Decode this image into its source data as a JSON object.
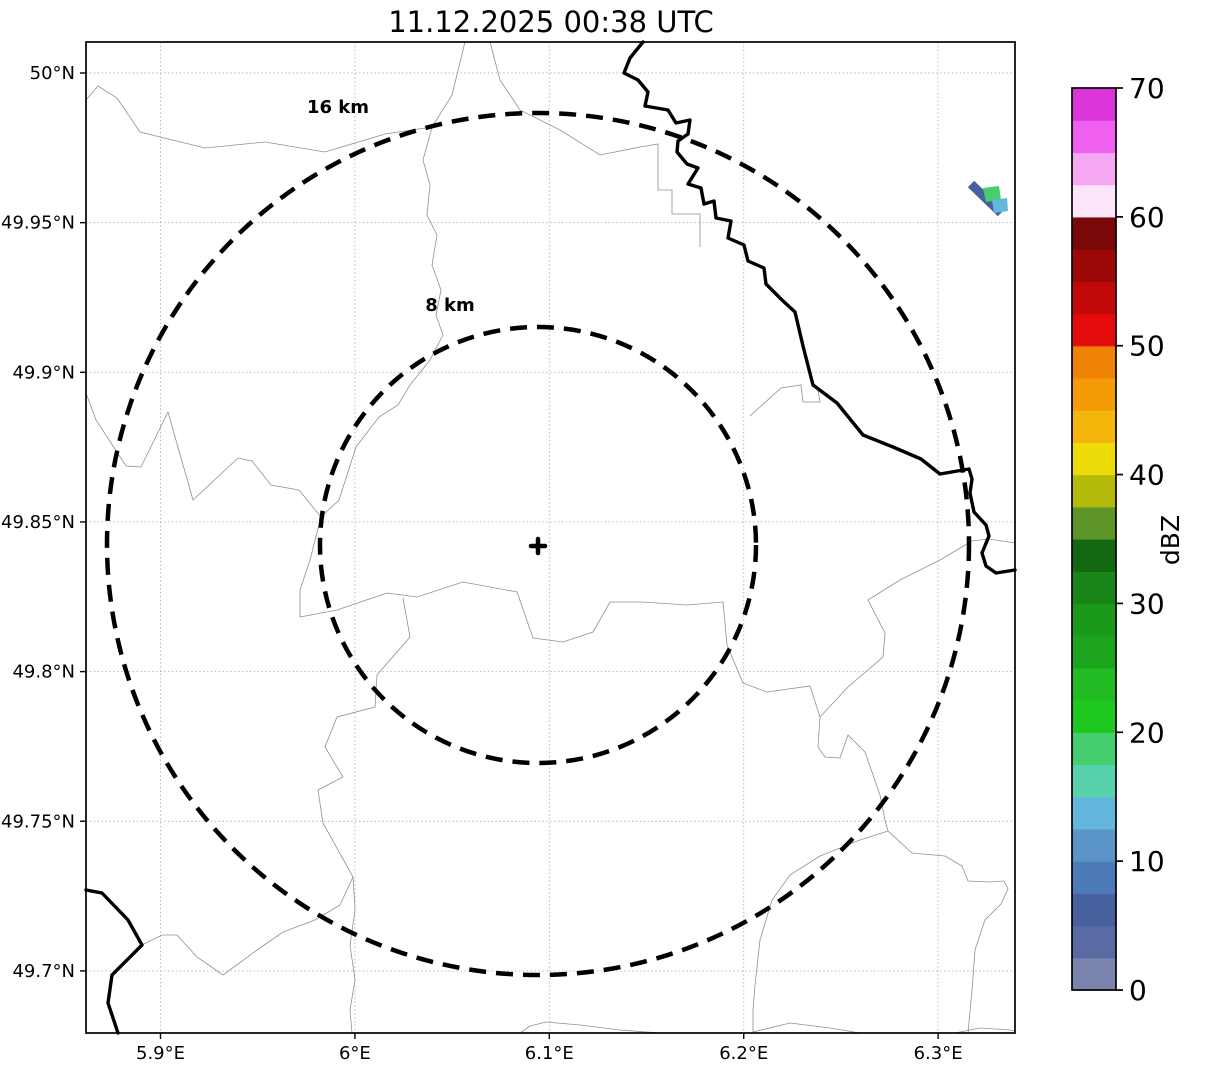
{
  "title": "11.12.2025 00:38 UTC",
  "chart_data": {
    "type": "map",
    "subtype": "weather-radar-ppi",
    "map": {
      "lon_tick_labels": [
        "5.9°E",
        "6°E",
        "6.1°E",
        "6.2°E",
        "6.3°E"
      ],
      "lon_tick_values": [
        5.9,
        6.0,
        6.1,
        6.2,
        6.3
      ],
      "lat_tick_labels": [
        "50°N",
        "49.95°N",
        "49.9°N",
        "49.85°N",
        "49.8°N",
        "49.75°N",
        "49.7°N"
      ],
      "lat_tick_values": [
        50.0,
        49.95,
        49.9,
        49.85,
        49.8,
        49.75,
        49.7
      ],
      "lon_range": [
        5.862,
        6.341
      ],
      "lat_range": [
        49.679,
        50.01
      ],
      "grid": "dotted",
      "radar_site": {
        "lon": 6.094,
        "lat": 49.842
      },
      "range_rings": [
        {
          "label": "16 km",
          "radius_km": 16
        },
        {
          "label": "8 km",
          "radius_km": 8
        }
      ]
    },
    "colorbar": {
      "label": "dBZ",
      "ticks": [
        0,
        10,
        20,
        30,
        40,
        50,
        60,
        70
      ],
      "vmin": 0,
      "vmax": 70,
      "step": 2.5,
      "colors_bottom_to_top": [
        "#7b84ad",
        "#5a6ba3",
        "#47619f",
        "#4d7ab8",
        "#5b94c8",
        "#64b6dc",
        "#57d2ad",
        "#45cd6f",
        "#1fc81f",
        "#23bb23",
        "#1da41d",
        "#1b991b",
        "#178517",
        "#116811",
        "#5d9426",
        "#b5b90a",
        "#ecdc09",
        "#f6b50a",
        "#f49b08",
        "#f08306",
        "#e30b0b",
        "#c20808",
        "#9c0707",
        "#7a0808",
        "#fce4fa",
        "#f7a8f3",
        "#f060f0",
        "#d935d9"
      ]
    },
    "echoes": [
      {
        "shape": "streak",
        "dbz_approx": 6,
        "color": "#47619f"
      },
      {
        "shape": "cell",
        "dbz_approx": 19,
        "color": "#45cd6f"
      },
      {
        "shape": "cell",
        "dbz_approx": 14,
        "color": "#64b6dc"
      }
    ]
  }
}
